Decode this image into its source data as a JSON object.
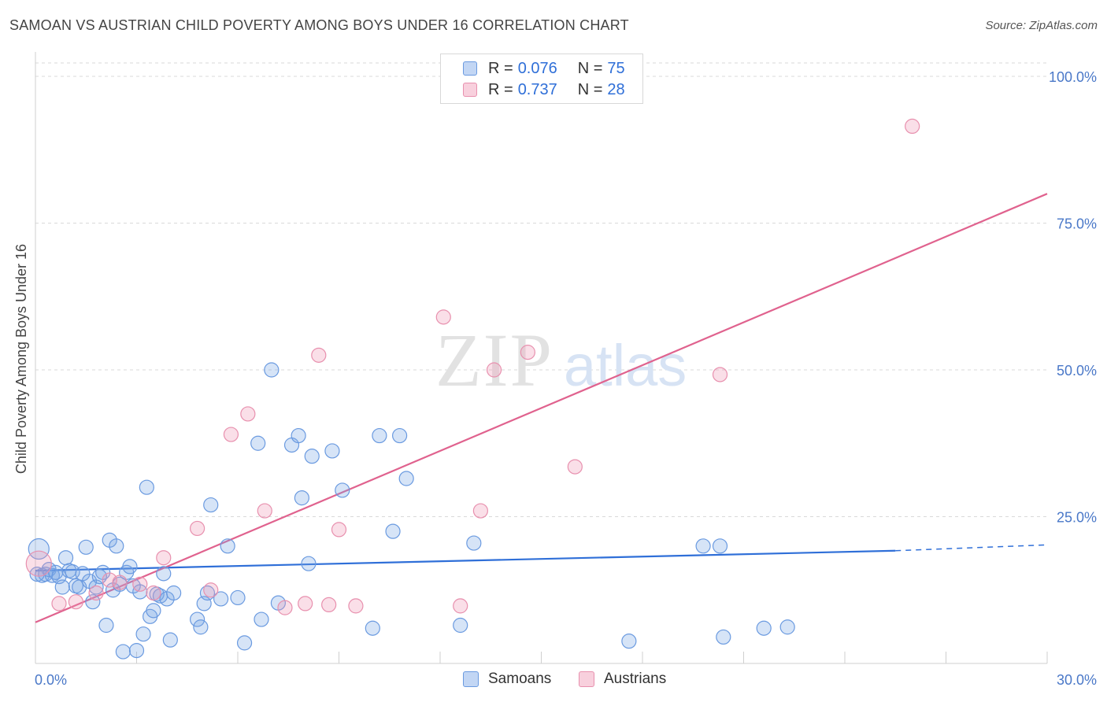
{
  "title": "SAMOAN VS AUSTRIAN CHILD POVERTY AMONG BOYS UNDER 16 CORRELATION CHART",
  "source": "Source: ZipAtlas.com",
  "watermark": {
    "zip": "ZIP",
    "atlas": "atlas"
  },
  "colors": {
    "samoans_fill": "rgba(120,165,230,0.30)",
    "samoans_stroke": "#6a9ae0",
    "samoans_line": "#2f6fd8",
    "austrians_fill": "rgba(240,150,180,0.30)",
    "austrians_stroke": "#e890ae",
    "austrians_line": "#e0628e",
    "grid": "#d9d9d9",
    "tick": "#4a78c8"
  },
  "legend_top": {
    "rows": [
      {
        "r_label": "R =",
        "r_value": "0.076",
        "n_label": "N =",
        "n_value": "75"
      },
      {
        "r_label": "R =",
        "r_value": "0.737",
        "n_label": "N =",
        "n_value": "28"
      }
    ]
  },
  "legend_bottom": {
    "samoans": "Samoans",
    "austrians": "Austrians"
  },
  "chart_data": {
    "type": "scatter",
    "title": "SAMOAN VS AUSTRIAN CHILD POVERTY AMONG BOYS UNDER 16 CORRELATION CHART",
    "xlabel": "",
    "ylabel": "Child Poverty Among Boys Under 16",
    "xlim": [
      0,
      30
    ],
    "ylim": [
      0,
      100
    ],
    "x_tick_labels": [
      "0.0%",
      "30.0%"
    ],
    "y_ticks": [
      25,
      50,
      75,
      100
    ],
    "y_tick_labels": [
      "25.0%",
      "50.0%",
      "75.0%",
      "100.0%"
    ],
    "legend_position": "top-center",
    "series": [
      {
        "name": "Samoans",
        "R": 0.076,
        "N": 75,
        "trend": {
          "x0": 0,
          "y0": 15.8,
          "x1": 25.5,
          "y1": 19.2,
          "dashed_to_x": 30,
          "dashed_to_y": 20.2
        },
        "points": [
          [
            0.1,
            19.5
          ],
          [
            0.2,
            15.0
          ],
          [
            0.3,
            15.2
          ],
          [
            0.4,
            16.0
          ],
          [
            0.5,
            15.0
          ],
          [
            0.6,
            15.5
          ],
          [
            0.7,
            14.8
          ],
          [
            0.8,
            13.0
          ],
          [
            0.9,
            18.0
          ],
          [
            1.0,
            15.8
          ],
          [
            1.1,
            15.6
          ],
          [
            1.2,
            13.2
          ],
          [
            1.3,
            13.0
          ],
          [
            1.4,
            15.3
          ],
          [
            1.5,
            19.8
          ],
          [
            1.6,
            14.0
          ],
          [
            1.7,
            10.5
          ],
          [
            1.8,
            13.0
          ],
          [
            1.9,
            14.8
          ],
          [
            2.0,
            15.5
          ],
          [
            2.1,
            6.5
          ],
          [
            2.2,
            21.0
          ],
          [
            2.3,
            12.5
          ],
          [
            2.4,
            20.0
          ],
          [
            2.5,
            13.5
          ],
          [
            2.6,
            2.0
          ],
          [
            2.7,
            15.5
          ],
          [
            2.8,
            16.5
          ],
          [
            2.9,
            13.2
          ],
          [
            3.0,
            2.2
          ],
          [
            3.1,
            12.2
          ],
          [
            3.2,
            5.0
          ],
          [
            3.3,
            30.0
          ],
          [
            3.4,
            8.0
          ],
          [
            3.5,
            9.0
          ],
          [
            3.6,
            11.8
          ],
          [
            3.7,
            11.5
          ],
          [
            3.8,
            15.3
          ],
          [
            3.9,
            11.0
          ],
          [
            4.0,
            4.0
          ],
          [
            4.1,
            12.0
          ],
          [
            4.8,
            7.5
          ],
          [
            4.9,
            6.2
          ],
          [
            5.0,
            10.2
          ],
          [
            5.1,
            12.0
          ],
          [
            5.2,
            27.0
          ],
          [
            5.5,
            11.0
          ],
          [
            5.7,
            20.0
          ],
          [
            6.0,
            11.2
          ],
          [
            6.2,
            3.5
          ],
          [
            6.6,
            37.5
          ],
          [
            6.7,
            7.5
          ],
          [
            7.0,
            50.0
          ],
          [
            7.2,
            10.3
          ],
          [
            7.6,
            37.2
          ],
          [
            7.8,
            38.8
          ],
          [
            7.9,
            28.2
          ],
          [
            8.1,
            17.0
          ],
          [
            8.2,
            35.3
          ],
          [
            8.8,
            36.2
          ],
          [
            9.1,
            29.5
          ],
          [
            10.0,
            6.0
          ],
          [
            10.2,
            38.8
          ],
          [
            10.6,
            22.5
          ],
          [
            10.8,
            38.8
          ],
          [
            11.0,
            31.5
          ],
          [
            12.6,
            6.5
          ],
          [
            13.0,
            20.5
          ],
          [
            17.6,
            3.8
          ],
          [
            19.8,
            20.0
          ],
          [
            20.3,
            20.0
          ],
          [
            20.4,
            4.5
          ],
          [
            21.6,
            6.0
          ],
          [
            22.3,
            6.2
          ],
          [
            0.05,
            15.2
          ]
        ]
      },
      {
        "name": "Austrians",
        "R": 0.737,
        "N": 28,
        "trend": {
          "x0": 0,
          "y0": 7.0,
          "x1": 30,
          "y1": 80.0
        },
        "points": [
          [
            0.1,
            17.0
          ],
          [
            0.7,
            10.2
          ],
          [
            1.2,
            10.5
          ],
          [
            1.8,
            12.0
          ],
          [
            2.2,
            14.2
          ],
          [
            2.5,
            13.8
          ],
          [
            3.1,
            13.5
          ],
          [
            3.5,
            12.0
          ],
          [
            3.8,
            18.0
          ],
          [
            4.8,
            23.0
          ],
          [
            5.2,
            12.5
          ],
          [
            5.8,
            39.0
          ],
          [
            6.3,
            42.5
          ],
          [
            6.8,
            26.0
          ],
          [
            7.4,
            9.5
          ],
          [
            8.0,
            10.2
          ],
          [
            8.4,
            52.5
          ],
          [
            8.7,
            10.0
          ],
          [
            9.0,
            22.8
          ],
          [
            9.5,
            9.8
          ],
          [
            12.1,
            59.0
          ],
          [
            12.6,
            9.8
          ],
          [
            13.2,
            26.0
          ],
          [
            13.6,
            50.0
          ],
          [
            14.6,
            53.0
          ],
          [
            16.0,
            33.5
          ],
          [
            20.3,
            49.2
          ],
          [
            26.0,
            91.5
          ]
        ]
      }
    ]
  }
}
